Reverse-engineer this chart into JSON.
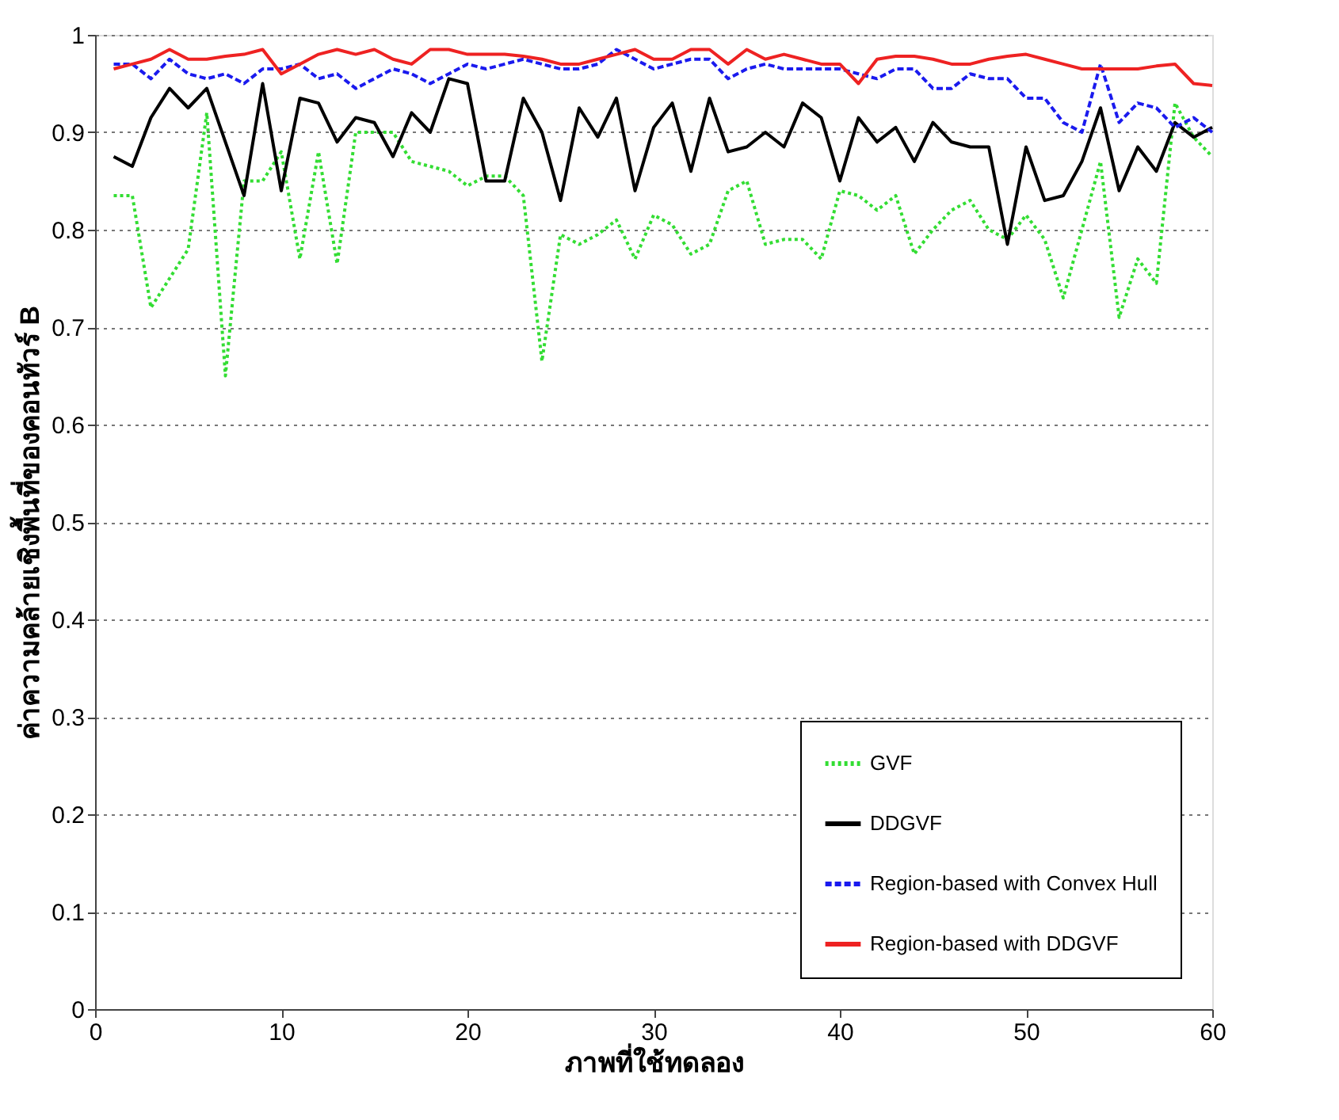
{
  "chart_data": {
    "type": "line",
    "xlabel": "ภาพที่ใช้ทดลอง",
    "ylabel": "ค่าความคล้ายเชิงพื้นที่ของคอนทัวร์ B",
    "x": [
      1,
      2,
      3,
      4,
      5,
      6,
      7,
      8,
      9,
      10,
      11,
      12,
      13,
      14,
      15,
      16,
      17,
      18,
      19,
      20,
      21,
      22,
      23,
      24,
      25,
      26,
      27,
      28,
      29,
      30,
      31,
      32,
      33,
      34,
      35,
      36,
      37,
      38,
      39,
      40,
      41,
      42,
      43,
      44,
      45,
      46,
      47,
      48,
      49,
      50,
      51,
      52,
      53,
      54,
      55,
      56,
      57,
      58,
      59,
      60
    ],
    "series": [
      {
        "name": "GVF",
        "color": "#33dd33",
        "line_style": "dotted",
        "values": [
          0.835,
          0.835,
          0.72,
          0.75,
          0.78,
          0.92,
          0.65,
          0.85,
          0.85,
          0.88,
          0.77,
          0.88,
          0.765,
          0.9,
          0.9,
          0.9,
          0.87,
          0.865,
          0.86,
          0.845,
          0.855,
          0.855,
          0.835,
          0.665,
          0.795,
          0.785,
          0.795,
          0.81,
          0.77,
          0.815,
          0.805,
          0.775,
          0.785,
          0.84,
          0.85,
          0.785,
          0.79,
          0.79,
          0.77,
          0.84,
          0.835,
          0.82,
          0.835,
          0.775,
          0.8,
          0.82,
          0.83,
          0.8,
          0.79,
          0.815,
          0.79,
          0.73,
          0.8,
          0.87,
          0.71,
          0.77,
          0.745,
          0.93,
          0.895,
          0.875
        ]
      },
      {
        "name": "DDGVF",
        "color": "#000000",
        "line_style": "solid",
        "values": [
          0.875,
          0.865,
          0.915,
          0.945,
          0.925,
          0.945,
          0.89,
          0.835,
          0.95,
          0.84,
          0.935,
          0.93,
          0.89,
          0.915,
          0.91,
          0.875,
          0.92,
          0.9,
          0.955,
          0.95,
          0.85,
          0.85,
          0.935,
          0.9,
          0.83,
          0.925,
          0.895,
          0.935,
          0.84,
          0.905,
          0.93,
          0.86,
          0.935,
          0.88,
          0.885,
          0.9,
          0.885,
          0.93,
          0.915,
          0.85,
          0.915,
          0.89,
          0.905,
          0.87,
          0.91,
          0.89,
          0.885,
          0.885,
          0.785,
          0.885,
          0.83,
          0.835,
          0.87,
          0.925,
          0.84,
          0.885,
          0.86,
          0.91,
          0.895,
          0.905
        ]
      },
      {
        "name": "Region-based with Convex Hull",
        "color": "#1a1aee",
        "line_style": "dashed",
        "values": [
          0.97,
          0.97,
          0.955,
          0.975,
          0.96,
          0.955,
          0.96,
          0.95,
          0.965,
          0.965,
          0.97,
          0.955,
          0.96,
          0.945,
          0.955,
          0.965,
          0.96,
          0.95,
          0.96,
          0.97,
          0.965,
          0.97,
          0.975,
          0.97,
          0.965,
          0.965,
          0.97,
          0.985,
          0.975,
          0.965,
          0.97,
          0.975,
          0.975,
          0.955,
          0.965,
          0.97,
          0.965,
          0.965,
          0.965,
          0.965,
          0.96,
          0.955,
          0.965,
          0.965,
          0.945,
          0.945,
          0.96,
          0.955,
          0.955,
          0.935,
          0.935,
          0.91,
          0.9,
          0.97,
          0.91,
          0.93,
          0.925,
          0.905,
          0.915,
          0.9
        ]
      },
      {
        "name": "Region-based with DDGVF",
        "color": "#ee2222",
        "line_style": "solid",
        "values": [
          0.965,
          0.97,
          0.975,
          0.985,
          0.975,
          0.975,
          0.978,
          0.98,
          0.985,
          0.96,
          0.97,
          0.98,
          0.985,
          0.98,
          0.985,
          0.975,
          0.97,
          0.985,
          0.985,
          0.98,
          0.98,
          0.98,
          0.978,
          0.975,
          0.97,
          0.97,
          0.975,
          0.98,
          0.985,
          0.975,
          0.975,
          0.985,
          0.985,
          0.97,
          0.985,
          0.975,
          0.98,
          0.975,
          0.97,
          0.97,
          0.95,
          0.975,
          0.978,
          0.978,
          0.975,
          0.97,
          0.97,
          0.975,
          0.978,
          0.98,
          0.975,
          0.97,
          0.965,
          0.965,
          0.965,
          0.965,
          0.968,
          0.97,
          0.95,
          0.948
        ]
      }
    ],
    "xlim": [
      0,
      60
    ],
    "xticks": [
      0,
      10,
      20,
      30,
      40,
      50,
      60
    ],
    "ylim": [
      0,
      1
    ],
    "yticks": [
      0,
      0.1,
      0.2,
      0.3,
      0.4,
      0.5,
      0.6,
      0.7,
      0.8,
      0.9,
      1
    ],
    "grid": "y",
    "legend": "bottom right"
  }
}
